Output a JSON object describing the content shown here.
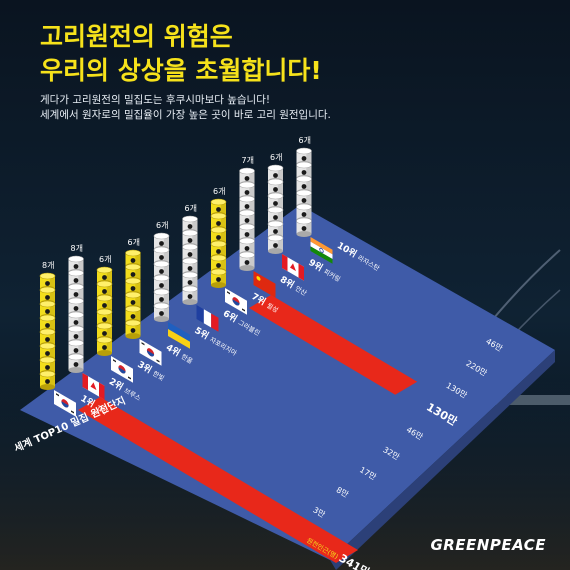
{
  "title": {
    "line1": "고리원전의 위험은",
    "line2": "우리의 상상을 초월합니다!"
  },
  "subtitle": {
    "line1": "게다가 고리원전의 밀집도는 후쿠시마보다 높습니다!",
    "line2": "세계에서 원자로의 밀집율이 가장 높은 곳이 바로 고리 원전입니다."
  },
  "side_label": "세계 TOP10 밀집 원전단지",
  "logo_text": "GREENPEACE",
  "colors": {
    "accent": "#f6e21b",
    "panel": "#3f5ba8",
    "highlight": "#e8281a",
    "barrel_white": "#e6e6e6",
    "barrel_yellow": "#f2dd1c"
  },
  "chart_data": {
    "type": "table",
    "units_label": "개",
    "rows": [
      {
        "rank": "1위",
        "country": "고리",
        "flag": "korea",
        "reactors": 8,
        "reactor_label": "8개",
        "barrel_color": "yellow",
        "population": "341만",
        "population_caption": "원전인근(명)",
        "highlight": true
      },
      {
        "rank": "2위",
        "country": "브루스",
        "flag": "canada",
        "reactors": 8,
        "reactor_label": "8개",
        "barrel_color": "white",
        "population": "3만"
      },
      {
        "rank": "3위",
        "country": "한빛",
        "flag": "korea",
        "reactors": 6,
        "reactor_label": "6개",
        "barrel_color": "yellow",
        "population": "8만"
      },
      {
        "rank": "4위",
        "country": "한울",
        "flag": "korea",
        "reactors": 6,
        "reactor_label": "6개",
        "barrel_color": "yellow",
        "population": "17만"
      },
      {
        "rank": "5위",
        "country": "자포리지아",
        "flag": "ukraine",
        "reactors": 6,
        "reactor_label": "6개",
        "barrel_color": "white",
        "population": "32만"
      },
      {
        "rank": "6위",
        "country": "그라블린",
        "flag": "france",
        "reactors": 6,
        "reactor_label": "6개",
        "barrel_color": "white",
        "population": "46만"
      },
      {
        "rank": "7위",
        "country": "월성",
        "flag": "korea",
        "reactors": 6,
        "reactor_label": "6개",
        "barrel_color": "yellow",
        "population": "130만",
        "highlight": true
      },
      {
        "rank": "8위",
        "country": "안산",
        "flag": "china",
        "reactors": 7,
        "reactor_label": "7개",
        "barrel_color": "white",
        "population": "130만"
      },
      {
        "rank": "9위",
        "country": "피커링",
        "flag": "canada",
        "reactors": 6,
        "reactor_label": "6개",
        "barrel_color": "white",
        "population": "220만"
      },
      {
        "rank": "10위",
        "country": "라자스탄",
        "flag": "india",
        "reactors": 6,
        "reactor_label": "6개",
        "barrel_color": "white",
        "population": "46만"
      }
    ]
  }
}
